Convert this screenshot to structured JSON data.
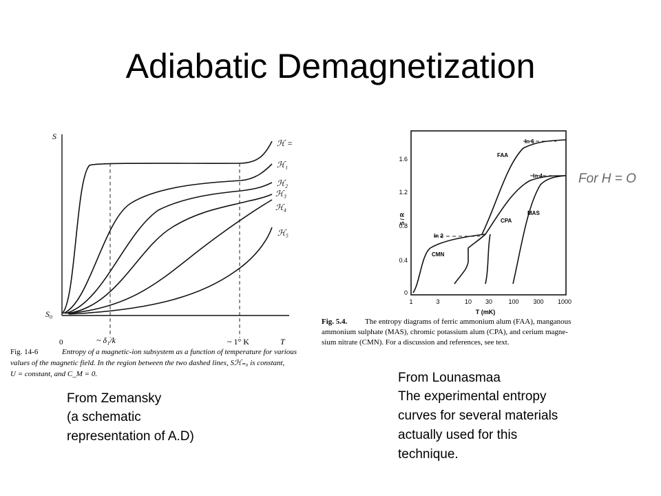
{
  "title": "Adiabatic Demagnetization",
  "left_figure": {
    "y_axis_label": "S",
    "s0_label": "S₀",
    "origin_label": "0",
    "x_mark_1": "~ δ₁/k",
    "x_mark_2": "~ 1° K",
    "x_axis_label": "T",
    "curve_labels": [
      "ℋ =",
      "ℋ₁",
      "ℋ₂",
      "ℋ₃",
      "ℋ₄",
      "ℋ₅"
    ],
    "caption_number": "Fig. 14-6",
    "caption_lines": [
      "Entropy of a magnetic-ion subsystem as a function of temperature for various",
      "values of the magnetic field. In the region between the two dashed lines, Sℋ₌₀ is constant,",
      "U = constant, and C_M = 0."
    ]
  },
  "left_note": [
    "From Zemansky",
    "(a schematic",
    "representation of A.D)"
  ],
  "right_figure": {
    "y_axis_label": "S / R",
    "yticks": [
      "1.6",
      "1.2",
      "0.8",
      "0.4",
      "0"
    ],
    "xticks": [
      "1",
      "3",
      "10",
      "30",
      "100",
      "300",
      "1000"
    ],
    "x_axis_label": "T (mK)",
    "curve_labels": [
      "ln 6",
      "FAA",
      "ln 4",
      "MAS",
      "CPA",
      "ln 2",
      "CMN"
    ],
    "caption_number": "Fig. 5.4.",
    "caption_lines": [
      "The entropy diagrams of ferric ammonium alum (FAA), manganous",
      "ammonium sulphate (MAS), chromic potassium alum (CPA), and cerium magne-",
      "sium nitrate (CMN). For a discussion and references, see text."
    ]
  },
  "handwritten": "For  H = O",
  "right_note": [
    "From Lounasmaa",
    "The experimental entropy",
    "curves for several materials",
    "actually used for this",
    "technique."
  ]
}
